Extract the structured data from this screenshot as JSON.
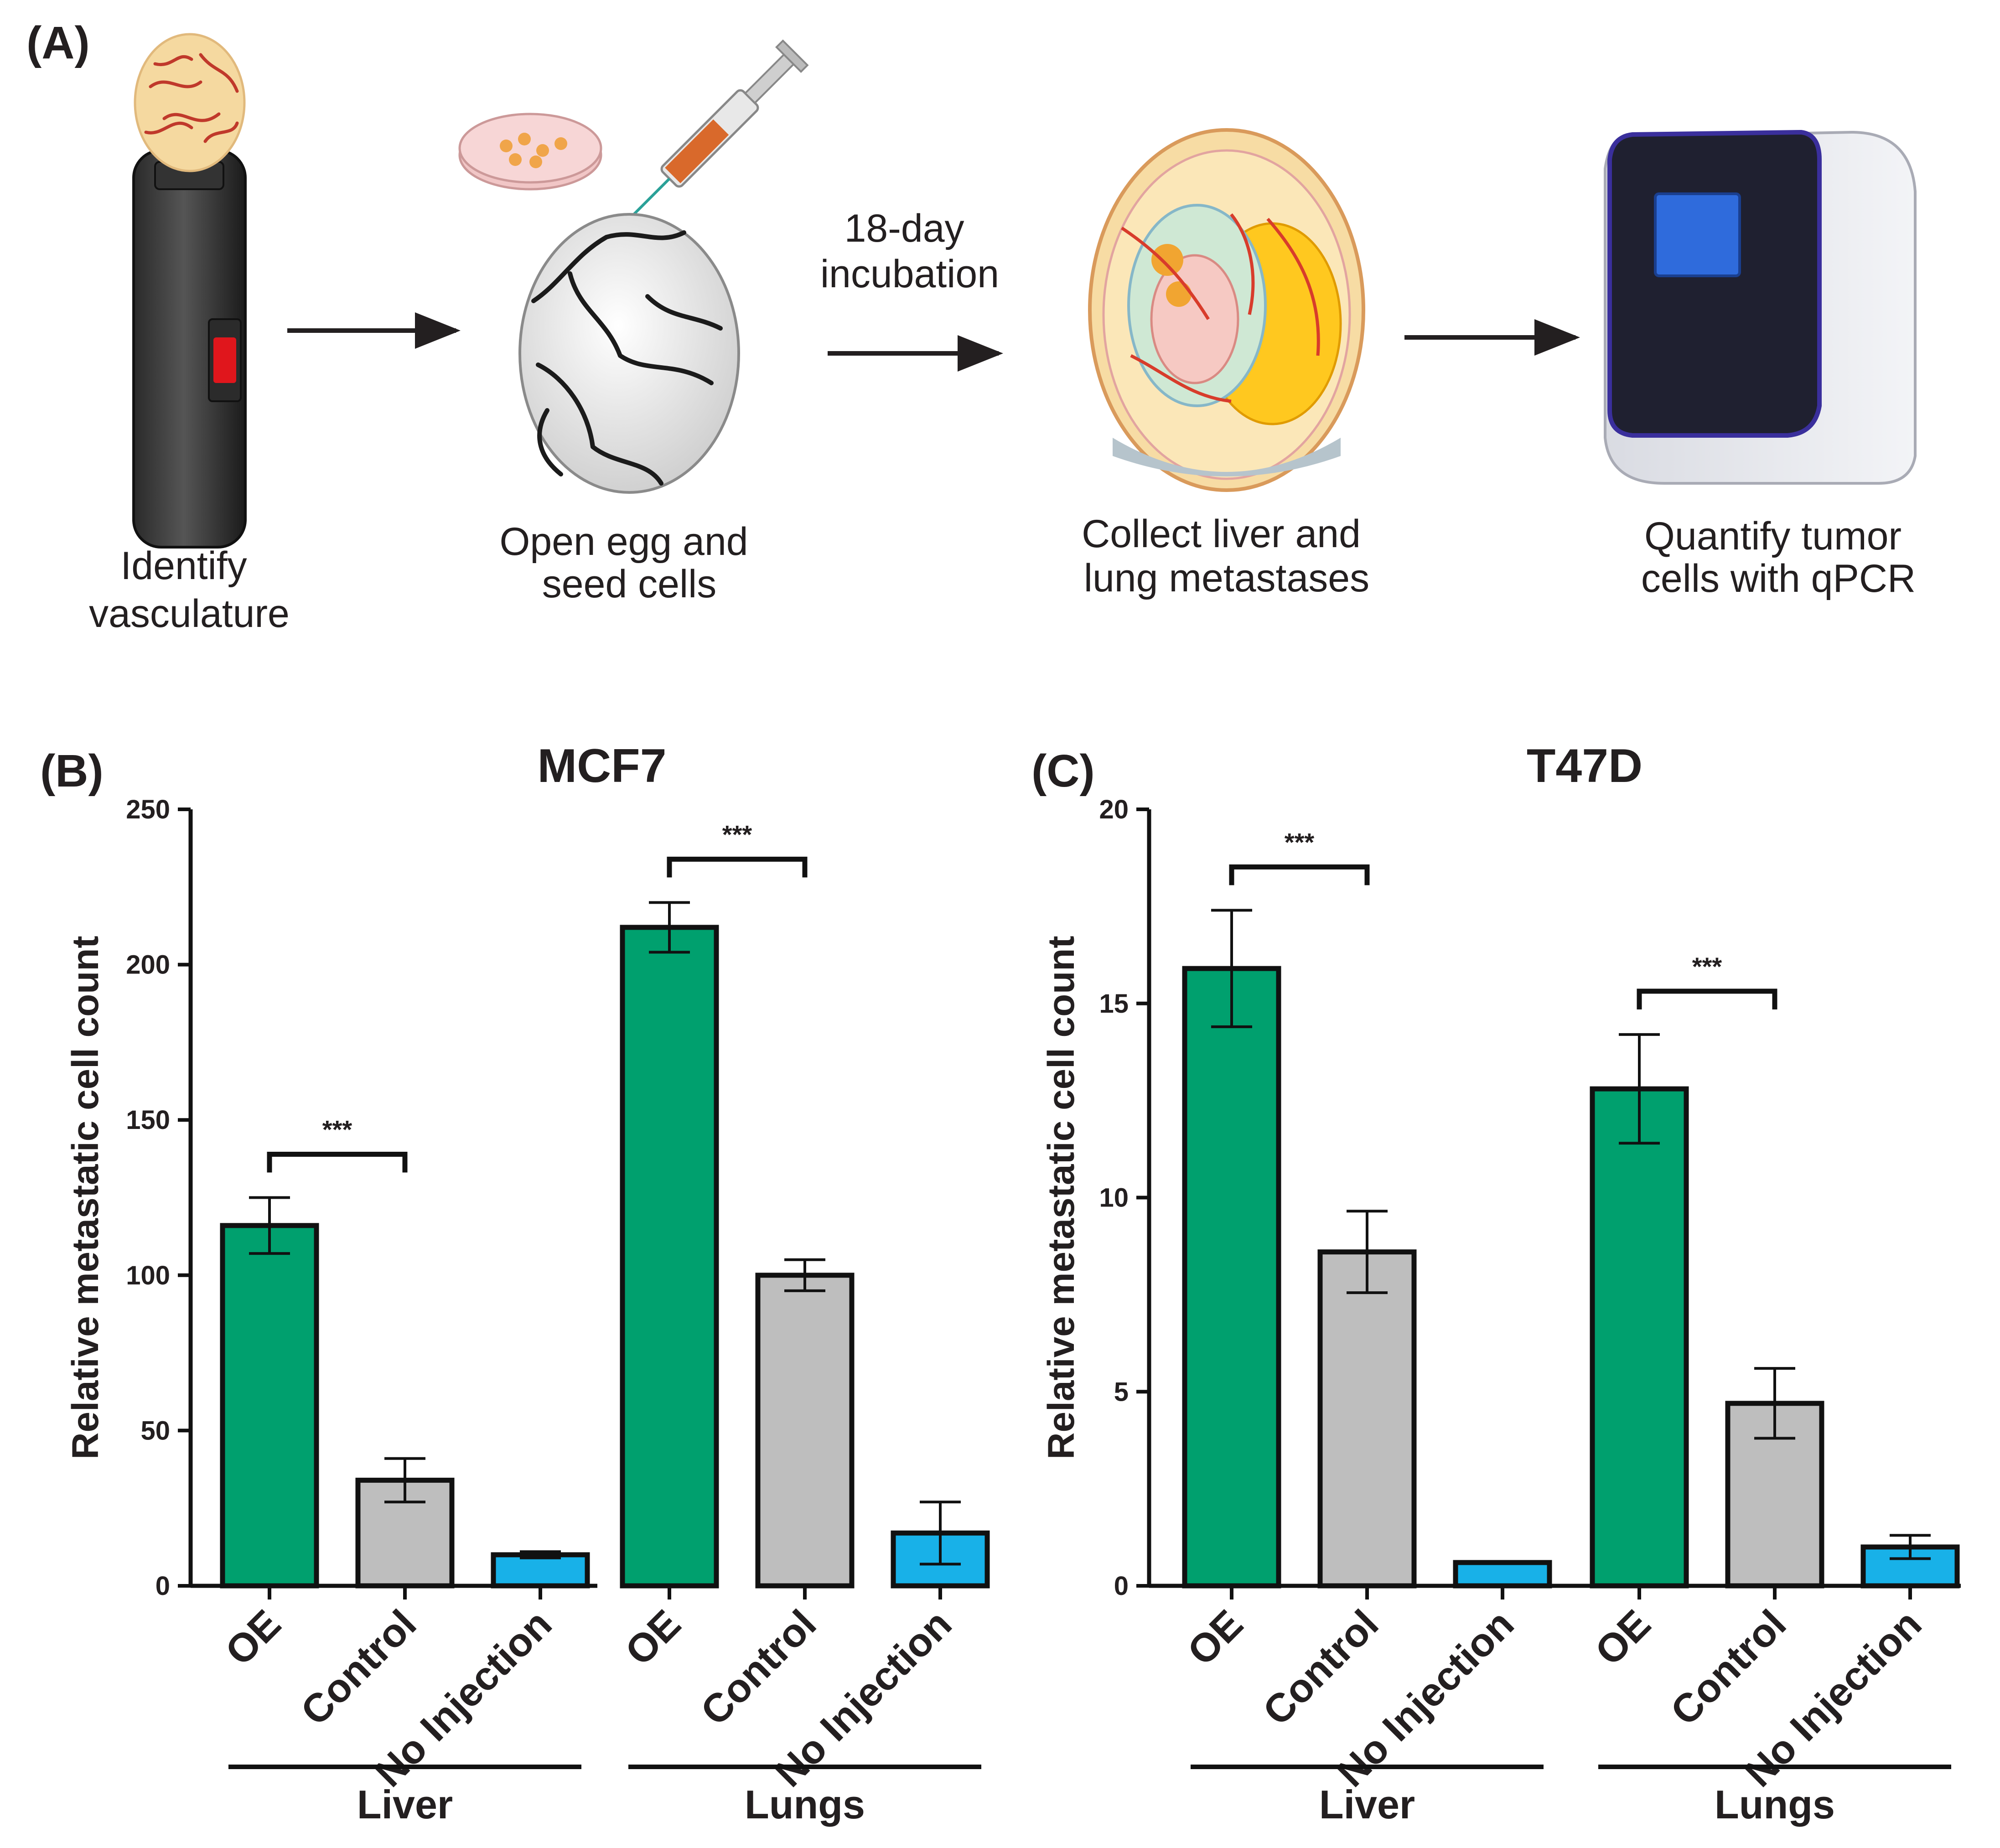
{
  "panel_a": {
    "label": "(A)",
    "steps": [
      {
        "line1": "Identify",
        "line2": "vasculature"
      },
      {
        "line1": "Open egg and",
        "line2": "seed cells"
      },
      {
        "line1": "Collect liver and",
        "line2": "lung metastases"
      },
      {
        "line1": "Quantify tumor",
        "line2": "cells with qPCR"
      }
    ],
    "incubation": {
      "line1": "18-day",
      "line2": "incubation"
    }
  },
  "colors": {
    "oe": "#00a06e",
    "control": "#bebebe",
    "no_injection": "#18b1e8",
    "outline": "#111111"
  },
  "chart_data": [
    {
      "panel_label": "(B)",
      "type": "bar",
      "title": "MCF7",
      "ylabel": "Relative metastatic cell count",
      "ylim": [
        0,
        250
      ],
      "yticks": [
        0,
        50,
        100,
        150,
        200,
        250
      ],
      "groups": [
        "Liver",
        "Lungs"
      ],
      "categories": [
        "OE",
        "Control",
        "No Injection"
      ],
      "series": [
        {
          "group": "Liver",
          "values": [
            116,
            34,
            10
          ],
          "errors": [
            9,
            7,
            1
          ]
        },
        {
          "group": "Lungs",
          "values": [
            212,
            100,
            17
          ],
          "errors": [
            8,
            5,
            10
          ]
        }
      ],
      "significance": [
        {
          "group": "Liver",
          "between": [
            "OE",
            "Control"
          ],
          "label": "***"
        },
        {
          "group": "Lungs",
          "between": [
            "OE",
            "Control"
          ],
          "label": "***"
        }
      ]
    },
    {
      "panel_label": "(C)",
      "type": "bar",
      "title": "T47D",
      "ylabel": "Relative metastatic cell count",
      "ylim": [
        0,
        20
      ],
      "yticks": [
        0,
        5,
        10,
        15,
        20
      ],
      "groups": [
        "Liver",
        "Lungs"
      ],
      "categories": [
        "OE",
        "Control",
        "No Injection"
      ],
      "series": [
        {
          "group": "Liver",
          "values": [
            15.9,
            8.6,
            0.6
          ],
          "errors": [
            1.5,
            1.05,
            0.02
          ]
        },
        {
          "group": "Lungs",
          "values": [
            12.8,
            4.7,
            1.0
          ],
          "errors": [
            1.4,
            0.9,
            0.3
          ]
        }
      ],
      "significance": [
        {
          "group": "Liver",
          "between": [
            "OE",
            "Control"
          ],
          "label": "***"
        },
        {
          "group": "Lungs",
          "between": [
            "OE",
            "Control"
          ],
          "label": "***"
        }
      ]
    }
  ]
}
